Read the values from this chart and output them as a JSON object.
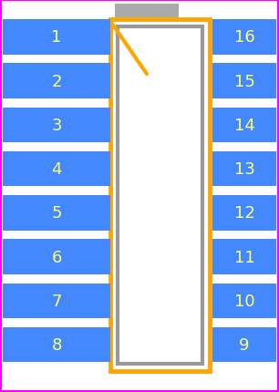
{
  "background_color": "#ffffff",
  "border_color": "#ff00ff",
  "pin_color": "#4488ff",
  "pin_text_color": "#ffff66",
  "body_border_color": "#ffa500",
  "ic_border_color": "#999999",
  "ic_fill_color": "#ffffff",
  "left_pins": [
    1,
    2,
    3,
    4,
    5,
    6,
    7,
    8
  ],
  "right_pins": [
    16,
    15,
    14,
    13,
    12,
    11,
    10,
    9
  ],
  "notch_color": "#ffa500",
  "tab_color": "#aaaaaa",
  "fig_width": 3.06,
  "fig_height": 4.31,
  "dpi": 100
}
